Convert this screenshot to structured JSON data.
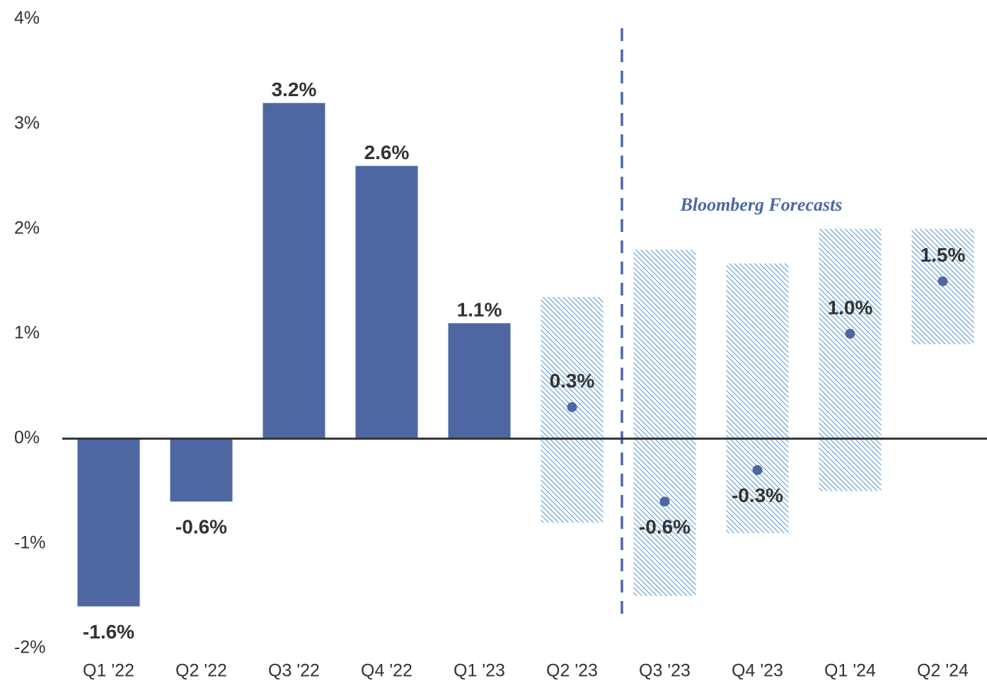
{
  "chart_data": {
    "type": "bar",
    "categories": [
      "Q1 '22",
      "Q2 '22",
      "Q3 '22",
      "Q4 '22",
      "Q1 '23",
      "Q2 '23",
      "Q3 '23",
      "Q4 '23",
      "Q1 '24",
      "Q2 '24"
    ],
    "values": [
      -1.6,
      -0.6,
      3.2,
      2.6,
      1.1,
      null,
      null,
      null,
      null,
      null
    ],
    "value_labels": [
      "-1.6%",
      "-0.6%",
      "3.2%",
      "2.6%",
      "1.1%",
      null,
      null,
      null,
      null,
      null
    ],
    "color": "#4e67a3",
    "forecast": {
      "values": [
        null,
        null,
        null,
        null,
        null,
        0.3,
        -0.6,
        -0.3,
        1.0,
        1.5
      ],
      "value_labels": [
        null,
        null,
        null,
        null,
        null,
        "0.3%",
        "-0.6%",
        "-0.3%",
        "1.0%",
        "1.5%"
      ],
      "low": [
        null,
        null,
        null,
        null,
        null,
        -0.8,
        -1.5,
        -0.9,
        -0.5,
        0.9
      ],
      "high": [
        null,
        null,
        null,
        null,
        null,
        1.35,
        1.8,
        1.67,
        2.0,
        2.0
      ],
      "color": "#5b9bd5"
    },
    "annotation": "Bloomberg Forecasts",
    "ylim": [
      -2,
      4
    ],
    "yticks": [
      {
        "value": -2,
        "label": "-2%"
      },
      {
        "value": -1,
        "label": "-1%"
      },
      {
        "value": 0,
        "label": "0%"
      },
      {
        "value": 1,
        "label": "1%"
      },
      {
        "value": 2,
        "label": "2%"
      },
      {
        "value": 3,
        "label": "3%"
      },
      {
        "value": 4,
        "label": "4%"
      }
    ],
    "grid": false
  }
}
